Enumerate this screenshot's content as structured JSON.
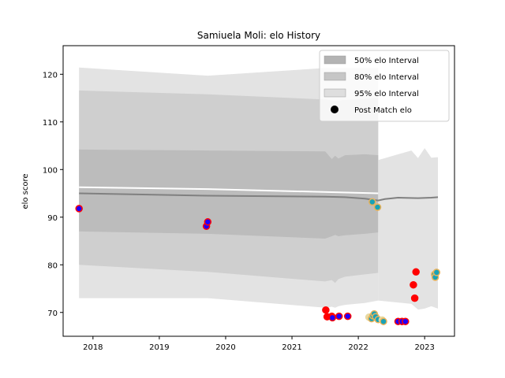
{
  "chart_data": {
    "type": "line",
    "title": "Samiuela Moli: elo History",
    "xlabel": "",
    "ylabel": "elo score",
    "xlim": [
      2017.55,
      2023.45
    ],
    "ylim": [
      65,
      126
    ],
    "x_ticks": [
      {
        "value": 2018,
        "label": "2018"
      },
      {
        "value": 2019,
        "label": "2019"
      },
      {
        "value": 2020,
        "label": "2020"
      },
      {
        "value": 2021,
        "label": "2021"
      },
      {
        "value": 2022,
        "label": "2022"
      },
      {
        "value": 2023,
        "label": "2023"
      }
    ],
    "y_ticks": [
      {
        "value": 70,
        "label": "70"
      },
      {
        "value": 80,
        "label": "80"
      },
      {
        "value": 90,
        "label": "90"
      },
      {
        "value": 100,
        "label": "100"
      },
      {
        "value": 110,
        "label": "110"
      },
      {
        "value": 120,
        "label": "120"
      }
    ],
    "grid": false,
    "legend_position": "top-right",
    "legend": [
      {
        "label": "50% elo Interval",
        "kind": "patch",
        "color": "#b3b3b3"
      },
      {
        "label": "80% elo Interval",
        "kind": "patch",
        "color": "#c6c6c6"
      },
      {
        "label": "95% elo Interval",
        "kind": "patch",
        "color": "#dedede"
      },
      {
        "label": "Post Match elo",
        "kind": "marker",
        "color": "#000000"
      }
    ],
    "band_colors": {
      "band95": "#e3e3e3",
      "band80": "#cfcfcf",
      "band50": "#bcbcbc"
    },
    "bands_first": {
      "x": [
        2017.79,
        2019.73,
        2021.5,
        2021.6,
        2021.65,
        2021.7,
        2021.8,
        2022.1,
        2022.3
      ],
      "upper95": [
        121.4,
        119.7,
        121.3,
        121.3,
        121.3,
        121.3,
        121.3,
        121.3,
        121.3
      ],
      "upper80": [
        116.6,
        115.8,
        114.7,
        114.5,
        114.4,
        114.5,
        114.6,
        114.8,
        115.0
      ],
      "upper50": [
        104.2,
        104.0,
        103.8,
        102.2,
        102.9,
        102.3,
        103.0,
        103.2,
        103.0
      ],
      "lower50": [
        87.0,
        86.5,
        85.5,
        86.0,
        86.3,
        86.0,
        86.2,
        86.5,
        86.8
      ],
      "lower80": [
        80.0,
        78.5,
        76.5,
        76.8,
        76.2,
        77.0,
        77.5,
        78.0,
        78.3
      ],
      "lower95": [
        73.0,
        73.0,
        71.0,
        71.2,
        71.0,
        71.3,
        71.6,
        72.0,
        72.5
      ]
    },
    "bands_second": {
      "x": [
        2022.3,
        2022.8,
        2022.9,
        2023.0,
        2023.1,
        2023.2
      ],
      "upper95": [
        102.0,
        104.0,
        102.4,
        104.5,
        102.5,
        102.6
      ],
      "lower95": [
        72.5,
        71.8,
        70.6,
        70.8,
        71.3,
        70.8
      ],
      "upper80": [
        86.1,
        86.2,
        86.2,
        86.5,
        87.0,
        87.4
      ],
      "lower80": [
        78.0,
        78.0,
        78.2,
        78.3,
        78.5,
        78.2
      ]
    },
    "white_line": {
      "x": [
        2017.79,
        2019.73,
        2022.3
      ],
      "y": [
        96.3,
        95.9,
        95.0
      ]
    },
    "mean_line": {
      "x": [
        2017.79,
        2019.73,
        2021.5,
        2021.8,
        2022.1,
        2022.3,
        2022.4,
        2022.6,
        2022.9,
        2023.1,
        2023.2
      ],
      "y": [
        95.0,
        94.5,
        94.3,
        94.2,
        93.9,
        93.5,
        93.8,
        94.1,
        94.0,
        94.1,
        94.2
      ]
    },
    "points": [
      {
        "x": 2017.79,
        "y": 91.8,
        "fill": "#1f00ff",
        "edge": "#ff0000"
      },
      {
        "x": 2019.71,
        "y": 88.1,
        "fill": "#1f00ff",
        "edge": "#ff0000"
      },
      {
        "x": 2019.73,
        "y": 89.0,
        "fill": "#1f00ff",
        "edge": "#ff0000"
      },
      {
        "x": 2021.51,
        "y": 70.5,
        "fill": "#ff0000",
        "edge": "#ff0000"
      },
      {
        "x": 2021.53,
        "y": 69.1,
        "fill": "#ff0000",
        "edge": "#ff0000"
      },
      {
        "x": 2021.6,
        "y": 69.2,
        "fill": "#ff0000",
        "edge": "#ff0000"
      },
      {
        "x": 2021.61,
        "y": 68.9,
        "fill": "#1f00ff",
        "edge": "#ff0000"
      },
      {
        "x": 2021.71,
        "y": 69.2,
        "fill": "#1f00ff",
        "edge": "#ff0000"
      },
      {
        "x": 2021.84,
        "y": 69.2,
        "fill": "#1f00ff",
        "edge": "#ff0000"
      },
      {
        "x": 2022.16,
        "y": 69.0,
        "fill": "#e8d9a0",
        "edge": "#e8d9a0"
      },
      {
        "x": 2022.2,
        "y": 68.7,
        "fill": "#17a2b8",
        "edge": "#e8b25a"
      },
      {
        "x": 2022.22,
        "y": 69.3,
        "fill": "#17a2b8",
        "edge": "#e8b25a"
      },
      {
        "x": 2022.24,
        "y": 69.7,
        "fill": "#17a2b8",
        "edge": "#e8b25a"
      },
      {
        "x": 2022.26,
        "y": 69.1,
        "fill": "#17a2b8",
        "edge": "#e8b25a"
      },
      {
        "x": 2022.3,
        "y": 68.5,
        "fill": "#17a2b8",
        "edge": "#e8b25a"
      },
      {
        "x": 2022.36,
        "y": 68.4,
        "fill": "#e8d9a0",
        "edge": "#e8d9a0"
      },
      {
        "x": 2022.38,
        "y": 68.1,
        "fill": "#17a2b8",
        "edge": "#e8b25a"
      },
      {
        "x": 2022.21,
        "y": 93.2,
        "fill": "#17a2b8",
        "edge": "#e8b25a"
      },
      {
        "x": 2022.29,
        "y": 92.1,
        "fill": "#17a2b8",
        "edge": "#e8b25a"
      },
      {
        "x": 2022.6,
        "y": 68.1,
        "fill": "#1f00ff",
        "edge": "#ff0000"
      },
      {
        "x": 2022.66,
        "y": 68.1,
        "fill": "#1f00ff",
        "edge": "#ff0000"
      },
      {
        "x": 2022.71,
        "y": 68.1,
        "fill": "#1f00ff",
        "edge": "#ff0000"
      },
      {
        "x": 2022.83,
        "y": 75.8,
        "fill": "#ff0000",
        "edge": "#ff0000"
      },
      {
        "x": 2022.85,
        "y": 73.0,
        "fill": "#ff0000",
        "edge": "#ff0000"
      },
      {
        "x": 2022.87,
        "y": 78.5,
        "fill": "#ff0000",
        "edge": "#ff0000"
      },
      {
        "x": 2023.15,
        "y": 78.0,
        "fill": "#17a2b8",
        "edge": "#e8b25a"
      },
      {
        "x": 2023.16,
        "y": 77.4,
        "fill": "#17a2b8",
        "edge": "#e8b25a"
      },
      {
        "x": 2023.18,
        "y": 78.4,
        "fill": "#17a2b8",
        "edge": "#e8b25a"
      }
    ]
  }
}
